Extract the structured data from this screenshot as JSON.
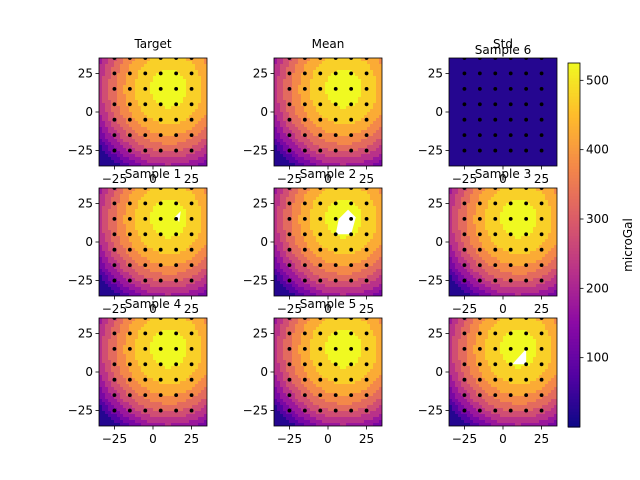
{
  "chart_data": {
    "type": "heatmap",
    "panels": [
      {
        "title": "Target",
        "field": "smooth"
      },
      {
        "title": "Mean",
        "field": "smooth"
      },
      {
        "title": "Std",
        "subtitle": "Sample 6",
        "field": "flat"
      },
      {
        "title": "Sample 1",
        "field": "smooth",
        "hole": "small"
      },
      {
        "title": "Sample 2",
        "field": "smooth",
        "hole": "large"
      },
      {
        "title": "Sample 3",
        "field": "smooth"
      },
      {
        "title": "Sample 4",
        "field": "smooth"
      },
      {
        "title": "Sample 5",
        "field": "smooth"
      },
      {
        "title": "",
        "field": "smooth",
        "hole": "triangle"
      }
    ],
    "x_ticks": [
      "−25",
      "0",
      "25"
    ],
    "y_ticks": [
      "25",
      "0",
      "−25"
    ],
    "xlim": [
      -35,
      35
    ],
    "ylim": [
      -35,
      35
    ],
    "stations_x": [
      -25,
      -15,
      -5,
      5,
      15,
      25
    ],
    "stations_y": [
      -25,
      -15,
      -5,
      5,
      15,
      25,
      35
    ],
    "field_center": [
      10,
      15
    ],
    "colorbar": {
      "label": "microGal",
      "ticks": [
        "100",
        "200",
        "300",
        "400",
        "500"
      ],
      "tick_values": [
        100,
        200,
        300,
        400,
        500
      ],
      "range": [
        0,
        525
      ],
      "colormap": "plasma"
    }
  }
}
